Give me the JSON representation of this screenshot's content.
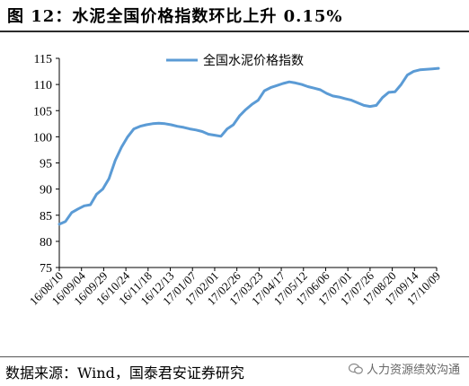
{
  "header": {
    "title": "图 12：水泥全国价格指数环比上升 0.15%"
  },
  "footer": {
    "source": "数据来源：Wind，国泰君安证券研究",
    "watermark": "人力资源绩效沟通"
  },
  "chart_data": {
    "type": "line",
    "title": "",
    "xlabel": "",
    "ylabel": "",
    "ylim": [
      75,
      115
    ],
    "yticks": [
      75,
      80,
      85,
      90,
      95,
      100,
      105,
      110,
      115
    ],
    "xtick_labels": [
      "16/08/10",
      "16/09/04",
      "16/09/29",
      "16/10/24",
      "16/11/18",
      "16/12/13",
      "17/01/07",
      "17/02/01",
      "17/02/26",
      "17/03/23",
      "17/04/17",
      "17/05/12",
      "17/06/06",
      "17/07/01",
      "17/07/26",
      "17/08/20",
      "17/09/14",
      "17/10/09"
    ],
    "grid": false,
    "legend": "top-center",
    "line_color": "#5b9bd5",
    "series": [
      {
        "name": "全国水泥价格指数",
        "x": [
          "16/08/10",
          "16/08/17",
          "16/08/24",
          "16/08/31",
          "16/09/07",
          "16/09/14",
          "16/09/21",
          "16/09/28",
          "16/10/05",
          "16/10/12",
          "16/10/19",
          "16/10/26",
          "16/11/02",
          "16/11/09",
          "16/11/16",
          "16/11/23",
          "16/11/30",
          "16/12/07",
          "16/12/14",
          "16/12/21",
          "16/12/28",
          "17/01/04",
          "17/01/11",
          "17/01/18",
          "17/01/25",
          "17/02/01",
          "17/02/08",
          "17/02/15",
          "17/02/22",
          "17/03/01",
          "17/03/08",
          "17/03/15",
          "17/03/22",
          "17/03/29",
          "17/04/05",
          "17/04/12",
          "17/04/19",
          "17/04/26",
          "17/05/03",
          "17/05/10",
          "17/05/17",
          "17/05/24",
          "17/05/31",
          "17/06/07",
          "17/06/14",
          "17/06/21",
          "17/06/28",
          "17/07/05",
          "17/07/12",
          "17/07/19",
          "17/07/26",
          "17/08/02",
          "17/08/09",
          "17/08/16",
          "17/08/23",
          "17/08/30",
          "17/09/06",
          "17/09/13",
          "17/09/20",
          "17/09/27",
          "17/10/04",
          "17/10/11"
        ],
        "values": [
          83.3,
          83.8,
          85.5,
          86.2,
          86.8,
          87.0,
          89.0,
          90.0,
          92.0,
          95.5,
          98.0,
          100.0,
          101.5,
          102.0,
          102.3,
          102.5,
          102.6,
          102.5,
          102.3,
          102.0,
          101.8,
          101.5,
          101.3,
          101.0,
          100.5,
          100.3,
          100.1,
          101.5,
          102.3,
          104.0,
          105.2,
          106.2,
          107.0,
          108.8,
          109.4,
          109.8,
          110.2,
          110.5,
          110.3,
          110.0,
          109.6,
          109.3,
          109.0,
          108.3,
          107.8,
          107.6,
          107.3,
          107.0,
          106.5,
          106.0,
          105.8,
          106.0,
          107.5,
          108.5,
          108.6,
          110.0,
          111.8,
          112.5,
          112.8,
          112.9,
          113.0,
          113.1
        ]
      }
    ]
  }
}
